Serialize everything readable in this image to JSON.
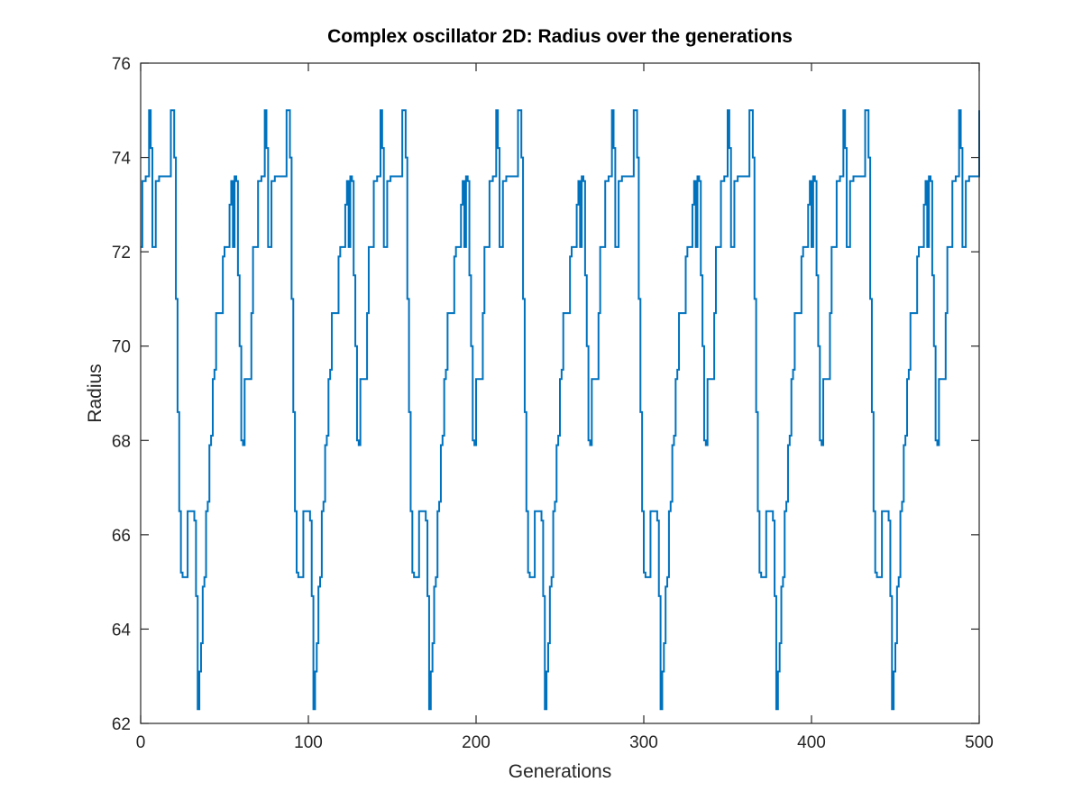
{
  "chart_data": {
    "type": "line",
    "title": "Complex oscillator 2D: Radius over the generations",
    "xlabel": "Generations",
    "ylabel": "Radius",
    "xlim": [
      0,
      500
    ],
    "ylim": [
      62,
      76
    ],
    "xticks": [
      0,
      100,
      200,
      300,
      400,
      500
    ],
    "yticks": [
      62,
      64,
      66,
      68,
      70,
      72,
      74,
      76
    ],
    "xtick_labels": [
      "0",
      "100",
      "200",
      "300",
      "400",
      "500"
    ],
    "ytick_labels": [
      "62",
      "64",
      "66",
      "68",
      "70",
      "72",
      "74",
      "76"
    ],
    "grid": false,
    "legend": "none",
    "period": 69,
    "series": [
      {
        "color": "#0072bd",
        "step": true,
        "cycle": [
          [
            0,
            72.1
          ],
          [
            1,
            73.5
          ],
          [
            3,
            73.6
          ],
          [
            5,
            75.0
          ],
          [
            6,
            74.2
          ],
          [
            7,
            72.1
          ],
          [
            9,
            73.5
          ],
          [
            11,
            73.6
          ],
          [
            18,
            75.0
          ],
          [
            20,
            74.0
          ],
          [
            21,
            71.0
          ],
          [
            22,
            68.6
          ],
          [
            23,
            66.5
          ],
          [
            24,
            65.2
          ],
          [
            25,
            65.1
          ],
          [
            28,
            66.5
          ],
          [
            32,
            66.3
          ],
          [
            33,
            64.7
          ],
          [
            34,
            62.3
          ],
          [
            35,
            63.1
          ],
          [
            36,
            63.7
          ],
          [
            37,
            64.9
          ],
          [
            38,
            65.1
          ],
          [
            39,
            66.5
          ],
          [
            40,
            66.7
          ],
          [
            41,
            67.9
          ],
          [
            42,
            68.1
          ],
          [
            43,
            69.3
          ],
          [
            44,
            69.5
          ],
          [
            45,
            70.7
          ],
          [
            48,
            70.7
          ],
          [
            49,
            71.9
          ],
          [
            50,
            72.1
          ],
          [
            53,
            73.0
          ],
          [
            54,
            73.5
          ],
          [
            55,
            72.1
          ],
          [
            56,
            73.6
          ],
          [
            57,
            73.5
          ],
          [
            58,
            71.5
          ],
          [
            59,
            70.0
          ],
          [
            60,
            68.0
          ],
          [
            61,
            67.9
          ],
          [
            62,
            69.3
          ],
          [
            65,
            69.3
          ],
          [
            66,
            70.7
          ],
          [
            67,
            72.1
          ],
          [
            68,
            72.1
          ]
        ]
      }
    ]
  }
}
